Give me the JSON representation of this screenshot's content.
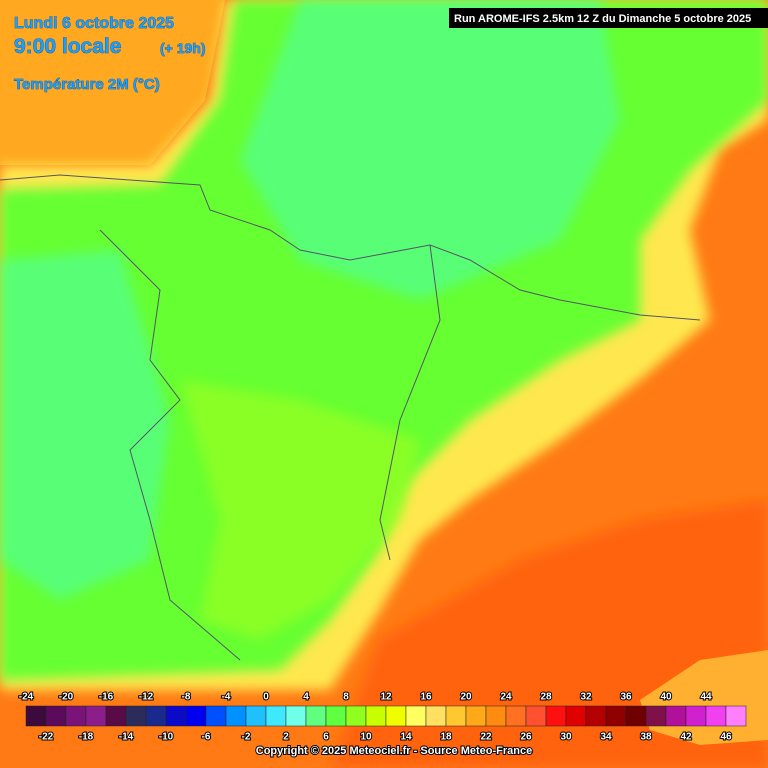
{
  "header": {
    "date": "Lundi 6 octobre 2025",
    "time": "9:00 locale",
    "lead": "(+ 19h)",
    "field": "Température 2M (°C)",
    "run": "Run AROME-IFS 2.5km 12 Z du Dimanche 5 octobre 2025"
  },
  "legend": {
    "values": [
      -24,
      -22,
      -20,
      -18,
      -16,
      -14,
      -12,
      -10,
      -8,
      -6,
      -4,
      -2,
      0,
      2,
      4,
      6,
      8,
      10,
      12,
      14,
      16,
      18,
      20,
      22,
      24,
      26,
      28,
      30,
      32,
      34,
      36,
      38,
      40,
      42,
      44,
      46
    ],
    "colors": [
      "#3c0a3c",
      "#5c0a5c",
      "#7a1478",
      "#8c1e8c",
      "#5a0a46",
      "#2c2c5c",
      "#1a2a8c",
      "#0a0ac8",
      "#0000f0",
      "#0050ff",
      "#0090ff",
      "#20c0ff",
      "#40e8ff",
      "#70ffe8",
      "#60ff80",
      "#60ff40",
      "#90ff20",
      "#c8ff00",
      "#f0ff00",
      "#ffff60",
      "#ffe060",
      "#ffc830",
      "#ffa818",
      "#ff8c10",
      "#ff7020",
      "#ff5030",
      "#ff1010",
      "#e00000",
      "#b40000",
      "#900000",
      "#700000",
      "#80104a",
      "#b0109a",
      "#d020d0",
      "#f040f0",
      "#ff80ff"
    ]
  },
  "footer": {
    "copyright": "Copyright © 2025 Meteociel.fr - Source Meteo-France"
  }
}
